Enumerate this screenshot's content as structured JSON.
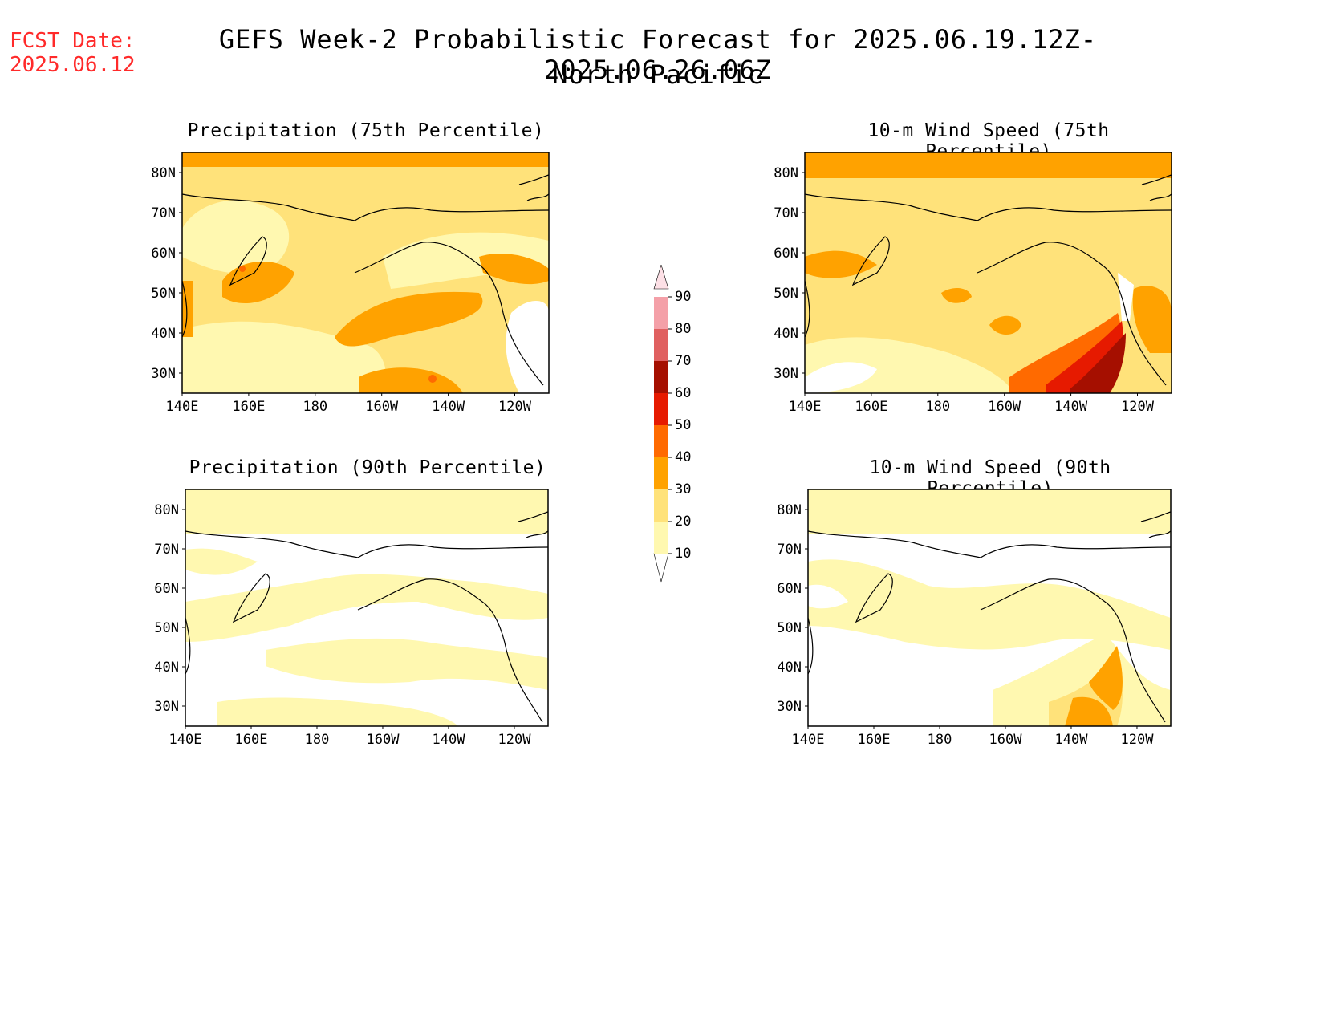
{
  "header": {
    "fcst_label": "FCST Date:",
    "fcst_date": "2025.06.12",
    "title": "GEFS Week-2 Probabilistic Forecast for 2025.06.19.12Z-2025.06.26.06Z",
    "subtitle": "North Pacific"
  },
  "panels": [
    {
      "title": "Precipitation (75th Percentile)",
      "variable": "precipitation",
      "percentile": 75
    },
    {
      "title": "10-m Wind Speed (75th Percentile)",
      "variable": "wind_speed",
      "percentile": 75
    },
    {
      "title": "Precipitation (90th Percentile)",
      "variable": "precipitation",
      "percentile": 90
    },
    {
      "title": "10-m Wind Speed (90th Percentile)",
      "variable": "wind_speed",
      "percentile": 90
    }
  ],
  "axes": {
    "lon_labels": [
      "140E",
      "160E",
      "180",
      "160W",
      "140W",
      "120W"
    ],
    "lat_labels": [
      "80N",
      "70N",
      "60N",
      "50N",
      "40N",
      "30N"
    ]
  },
  "colorbar": {
    "levels": [
      "10",
      "20",
      "30",
      "40",
      "50",
      "60",
      "70",
      "80",
      "90"
    ],
    "colors": [
      "#fff8b0",
      "#ffe27a",
      "#ffa200",
      "#ff6a00",
      "#e61a00",
      "#a50f00",
      "#e06060",
      "#f4a0a8",
      "#fde0e6"
    ]
  }
}
